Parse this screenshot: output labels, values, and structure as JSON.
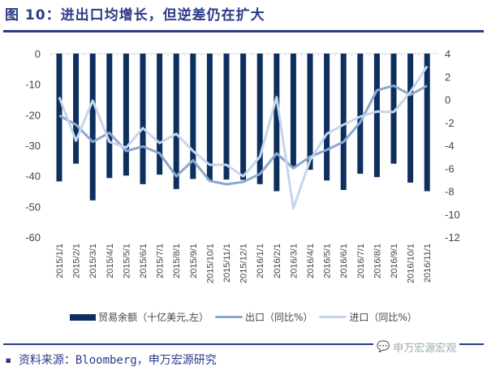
{
  "title": "图 10：进出口均增长，但逆差仍在扩大",
  "source": "▪ 资料来源：Bloomberg，申万宏源研究",
  "watermark": "申万宏源宏观",
  "colors": {
    "bar": "#0d2f5e",
    "export": "#8aa8cf",
    "import": "#c5d6ec",
    "title": "#2b3a86"
  },
  "chart_data": {
    "type": "bar+line",
    "categories": [
      "2015/1/1",
      "2015/2/1",
      "2015/3/1",
      "2015/4/1",
      "2015/5/1",
      "2015/6/1",
      "2015/7/1",
      "2015/8/1",
      "2015/9/1",
      "2015/10/1",
      "2015/11/1",
      "2015/12/1",
      "2016/1/1",
      "2016/2/1",
      "2016/3/1",
      "2016/4/1",
      "2016/5/1",
      "2016/6/1",
      "2016/7/1",
      "2016/8/1",
      "2016/9/1",
      "2016/10/1",
      "2016/11/1"
    ],
    "series": [
      {
        "name": "贸易余额（十亿美元,左）",
        "type": "bar",
        "axis": "left",
        "values": [
          -41.8,
          -36,
          -48,
          -40.7,
          -39.9,
          -42.7,
          -39.6,
          -44.3,
          -41,
          -41.4,
          -41.2,
          -41.3,
          -42.7,
          -45,
          -36.9,
          -38,
          -41.5,
          -44.6,
          -39.3,
          -40.4,
          -36,
          -42.2,
          -45
        ]
      },
      {
        "name": "出口（同比%）",
        "type": "line",
        "axis": "right",
        "values": [
          -1.4,
          -2.2,
          -3.7,
          -2.9,
          -4.5,
          -4.1,
          -4.7,
          -6.7,
          -5.3,
          -7.1,
          -7.4,
          -7.2,
          -6.5,
          -4.7,
          -6.0,
          -5.0,
          -4.4,
          -3.7,
          -2.0,
          0.8,
          1.2,
          0.4,
          1.2
        ]
      },
      {
        "name": "进口（同比%）",
        "type": "line",
        "axis": "right",
        "values": [
          0.2,
          -3.6,
          -0.1,
          -3.7,
          -4.2,
          -2.5,
          -3.8,
          -3.0,
          -4.5,
          -5.7,
          -5.7,
          -6.7,
          -5.0,
          0.2,
          -9.5,
          -5.3,
          -3.0,
          -2.2,
          -1.5,
          -1.05,
          -1.1,
          0.65,
          2.9
        ]
      }
    ],
    "ylim_left": [
      -60,
      0
    ],
    "yticks_left": [
      "0",
      "-10",
      "-20",
      "-30",
      "-40",
      "-50",
      "-60"
    ],
    "ylim_right": [
      -12,
      4
    ],
    "yticks_right": [
      "4",
      "2",
      "0",
      "-2",
      "-4",
      "-6",
      "-8",
      "-10",
      "-12"
    ],
    "grid": false,
    "legend": "bottom"
  }
}
